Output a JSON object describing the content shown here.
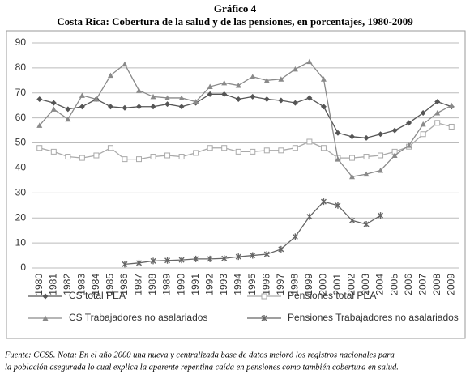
{
  "chart_data": {
    "type": "line",
    "title": "Gráfico 4",
    "subtitle": "Costa Rica: Cobertura de la salud y de las pensiones, en porcentajes, 1980-2009",
    "categories": [
      "1980",
      "1981",
      "1982",
      "1983",
      "1984",
      "1985",
      "1986",
      "1987",
      "1988",
      "1989",
      "1990",
      "1991",
      "1992",
      "1993",
      "1994",
      "1995",
      "1996",
      "1997",
      "1998",
      "1999",
      "2000",
      "2001",
      "2002",
      "2003",
      "2004",
      "2005",
      "2006",
      "2007",
      "2008",
      "2009"
    ],
    "ylim": [
      0,
      90
    ],
    "yticks": [
      0,
      10,
      20,
      30,
      40,
      50,
      60,
      70,
      80,
      90
    ],
    "grid": true,
    "series": [
      {
        "name": "CS total PEA",
        "color": "#555555",
        "marker": "diamond",
        "values": [
          67.5,
          66,
          63.5,
          64.5,
          67.5,
          64.5,
          64,
          64.5,
          64.5,
          65.5,
          64.5,
          66,
          69.5,
          69.5,
          67.5,
          68.5,
          67.5,
          67,
          66,
          68,
          64.5,
          54,
          52.5,
          52,
          53.5,
          55,
          58,
          62,
          66.5,
          64.5
        ]
      },
      {
        "name": "Pensiones total PEA",
        "color": "#aaaaaa",
        "marker": "square-open",
        "values": [
          48,
          46.5,
          44.5,
          44,
          45,
          48,
          43.5,
          43.5,
          44.5,
          45,
          44.5,
          46,
          48,
          48,
          46.5,
          46.5,
          47,
          47,
          48,
          50.5,
          48,
          44,
          44,
          44.5,
          45,
          46.5,
          48.5,
          53.5,
          58,
          56.5
        ]
      },
      {
        "name": "CS Trabajadores no asalariados",
        "color": "#8a8a8a",
        "marker": "triangle",
        "values": [
          57,
          63.5,
          59.5,
          69,
          67.5,
          77,
          81.5,
          71,
          68.5,
          68,
          68,
          66.5,
          72.5,
          74,
          73,
          76.5,
          75,
          75.5,
          79.5,
          82.5,
          75.5,
          43.5,
          36.5,
          37.5,
          39,
          45,
          49,
          57.5,
          62,
          65
        ]
      },
      {
        "name": "Pensiones Trabajadores no asalariados",
        "color": "#666666",
        "marker": "star",
        "values": [
          null,
          null,
          null,
          null,
          null,
          null,
          1.5,
          2,
          2.8,
          3,
          3.2,
          3.6,
          3.6,
          3.8,
          4.5,
          5,
          5.5,
          7.5,
          12.5,
          20.5,
          26.5,
          25,
          19,
          17.5,
          21,
          null,
          null,
          null,
          null,
          null
        ]
      }
    ],
    "notes": [
      "Fuente: CCSS. Nota: En el año 2000 una nueva y centralizada base de datos mejoró los registros nacionales para",
      "la población asegurada lo cual explica la aparente repentina caída en pensiones como también cobertura en salud."
    ]
  }
}
